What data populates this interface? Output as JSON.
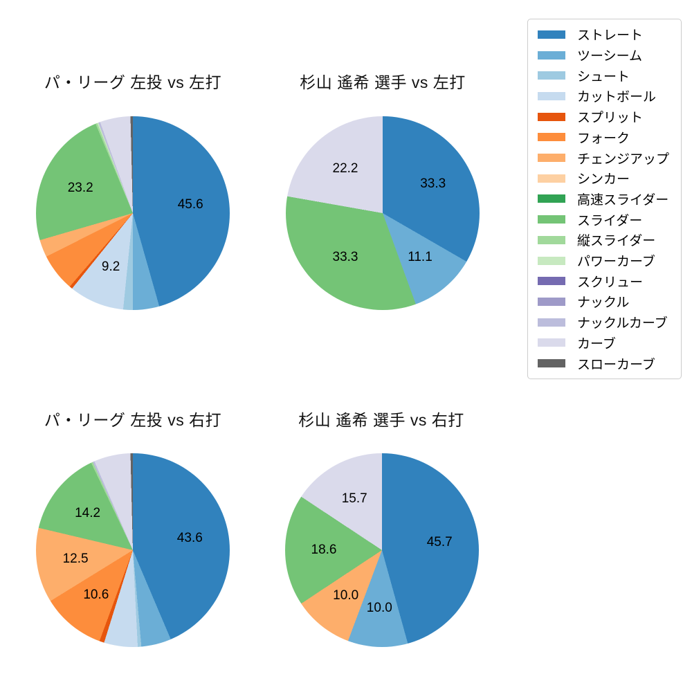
{
  "page": {
    "background": "#ffffff"
  },
  "legend": {
    "position": "top-right",
    "items": [
      {
        "label": "ストレート",
        "color": "#3182bd"
      },
      {
        "label": "ツーシーム",
        "color": "#6baed6"
      },
      {
        "label": "シュート",
        "color": "#9ecae1"
      },
      {
        "label": "カットボール",
        "color": "#c6dbef"
      },
      {
        "label": "スプリット",
        "color": "#e6550d"
      },
      {
        "label": "フォーク",
        "color": "#fd8d3c"
      },
      {
        "label": "チェンジアップ",
        "color": "#fdae6b"
      },
      {
        "label": "シンカー",
        "color": "#fdd0a2"
      },
      {
        "label": "高速スライダー",
        "color": "#31a354"
      },
      {
        "label": "スライダー",
        "color": "#74c476"
      },
      {
        "label": "縦スライダー",
        "color": "#a1d99b"
      },
      {
        "label": "パワーカーブ",
        "color": "#c7e9c0"
      },
      {
        "label": "スクリュー",
        "color": "#756bb1"
      },
      {
        "label": "ナックル",
        "color": "#9e9ac8"
      },
      {
        "label": "ナックルカーブ",
        "color": "#bcbddc"
      },
      {
        "label": "カーブ",
        "color": "#dadaeb"
      },
      {
        "label": "スローカーブ",
        "color": "#636363"
      }
    ]
  },
  "chart_data": [
    {
      "type": "pie",
      "title": "パ・リーグ 左投 vs 左打",
      "start": "12-oclock",
      "direction": "clockwise",
      "label_distance": 0.6,
      "slices": [
        {
          "pitch": "ストレート",
          "value": 45.6,
          "display": "45.6"
        },
        {
          "pitch": "ツーシーム",
          "value": 4.4
        },
        {
          "pitch": "シュート",
          "value": 1.6
        },
        {
          "pitch": "カットボール",
          "value": 9.2,
          "display": "9.2"
        },
        {
          "pitch": "スプリット",
          "value": 0.5
        },
        {
          "pitch": "フォーク",
          "value": 6.3
        },
        {
          "pitch": "チェンジアップ",
          "value": 2.9
        },
        {
          "pitch": "スライダー",
          "value": 23.2,
          "display": "23.2"
        },
        {
          "pitch": "縦スライダー",
          "value": 0.3
        },
        {
          "pitch": "パワーカーブ",
          "value": 0.2
        },
        {
          "pitch": "ナックルカーブ",
          "value": 0.3
        },
        {
          "pitch": "カーブ",
          "value": 5.1
        },
        {
          "pitch": "スローカーブ",
          "value": 0.4
        }
      ]
    },
    {
      "type": "pie",
      "title": "杉山 遙希 選手 vs 左打",
      "start": "12-oclock",
      "direction": "clockwise",
      "label_distance": 0.6,
      "slices": [
        {
          "pitch": "ストレート",
          "value": 33.3,
          "display": "33.3"
        },
        {
          "pitch": "ツーシーム",
          "value": 11.1,
          "display": "11.1"
        },
        {
          "pitch": "スライダー",
          "value": 33.3,
          "display": "33.3"
        },
        {
          "pitch": "カーブ",
          "value": 22.2,
          "display": "22.2"
        }
      ]
    },
    {
      "type": "pie",
      "title": "パ・リーグ 左投 vs 右打",
      "start": "12-oclock",
      "direction": "clockwise",
      "label_distance": 0.6,
      "slices": [
        {
          "pitch": "ストレート",
          "value": 43.6,
          "display": "43.6"
        },
        {
          "pitch": "ツーシーム",
          "value": 5.0
        },
        {
          "pitch": "シュート",
          "value": 0.6
        },
        {
          "pitch": "カットボール",
          "value": 5.6
        },
        {
          "pitch": "スプリット",
          "value": 0.8
        },
        {
          "pitch": "フォーク",
          "value": 10.6,
          "display": "10.6"
        },
        {
          "pitch": "チェンジアップ",
          "value": 12.5,
          "display": "12.5"
        },
        {
          "pitch": "スライダー",
          "value": 14.2,
          "display": "14.2"
        },
        {
          "pitch": "縦スライダー",
          "value": 0.3
        },
        {
          "pitch": "ナックルカーブ",
          "value": 0.3
        },
        {
          "pitch": "カーブ",
          "value": 6.1
        },
        {
          "pitch": "スローカーブ",
          "value": 0.4
        }
      ]
    },
    {
      "type": "pie",
      "title": "杉山 遙希 選手 vs 右打",
      "start": "12-oclock",
      "direction": "clockwise",
      "label_distance": 0.6,
      "slices": [
        {
          "pitch": "ストレート",
          "value": 45.7,
          "display": "45.7"
        },
        {
          "pitch": "ツーシーム",
          "value": 10.0,
          "display": "10.0"
        },
        {
          "pitch": "チェンジアップ",
          "value": 10.0,
          "display": "10.0"
        },
        {
          "pitch": "スライダー",
          "value": 18.6,
          "display": "18.6"
        },
        {
          "pitch": "カーブ",
          "value": 15.7,
          "display": "15.7"
        }
      ]
    }
  ]
}
